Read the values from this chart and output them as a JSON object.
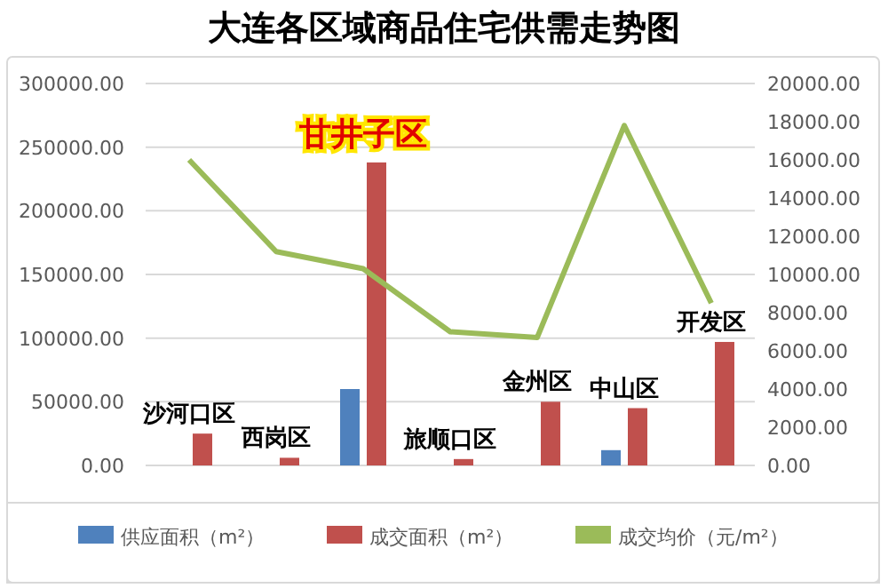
{
  "chart_data": {
    "type": "bar",
    "title": "大连各区域商品住宅供需走势图",
    "categories": [
      "沙河口区",
      "西岗区",
      "甘井子区",
      "旅顺口区",
      "金州区",
      "中山区",
      "开发区"
    ],
    "series": [
      {
        "name": "供应面积（m²）",
        "color": "#4f81bd",
        "values": [
          null,
          null,
          60000,
          null,
          null,
          12000,
          null
        ]
      },
      {
        "name": "成交面积（m²）",
        "color": "#c0504d",
        "values": [
          25000,
          6000,
          238000,
          5000,
          50000,
          45000,
          97000
        ]
      },
      {
        "name": "成交均价（元/m²）",
        "type": "line",
        "axis": "y2",
        "color": "#9bbb59",
        "values": [
          16000,
          11200,
          10300,
          7000,
          6700,
          17800,
          8500
        ]
      }
    ],
    "ylim": [
      0,
      300000
    ],
    "yticks": [
      {
        "value": 0,
        "label": "0.00"
      },
      {
        "value": 50000,
        "label": "50000.00"
      },
      {
        "value": 100000,
        "label": "100000.00"
      },
      {
        "value": 150000,
        "label": "150000.00"
      },
      {
        "value": 200000,
        "label": "200000.00"
      },
      {
        "value": 250000,
        "label": "250000.00"
      },
      {
        "value": 300000,
        "label": "300000.00"
      }
    ],
    "y2lim": [
      0,
      20000
    ],
    "y2ticks": [
      {
        "value": 0,
        "label": "0.00"
      },
      {
        "value": 2000,
        "label": "2000.00"
      },
      {
        "value": 4000,
        "label": "4000.00"
      },
      {
        "value": 6000,
        "label": "6000.00"
      },
      {
        "value": 8000,
        "label": "8000.00"
      },
      {
        "value": 10000,
        "label": "10000.00"
      },
      {
        "value": 12000,
        "label": "12000.00"
      },
      {
        "value": 14000,
        "label": "14000.00"
      },
      {
        "value": 16000,
        "label": "16000.00"
      },
      {
        "value": 18000,
        "label": "18000.00"
      },
      {
        "value": 20000,
        "label": "20000.00"
      }
    ],
    "grid": "y",
    "legend": "bottom"
  }
}
